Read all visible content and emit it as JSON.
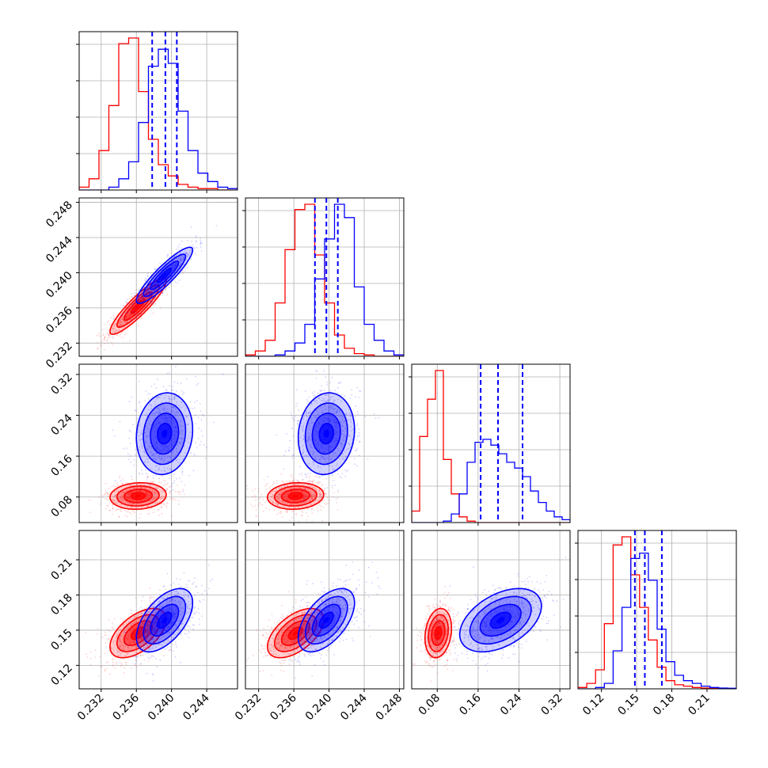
{
  "chart_data": {
    "type": "corner",
    "grid": true,
    "series_colors": {
      "run_a": "#ff0000",
      "run_b": "#0000ff"
    },
    "quantile_line_style": "dashed",
    "parameters": [
      {
        "range": [
          0.2295,
          0.2475
        ],
        "ticks": [
          0.232,
          0.236,
          0.24,
          0.244
        ],
        "tick_labels": [
          "0.232",
          "0.236",
          "0.240",
          "0.244"
        ],
        "quantiles": [
          0.2378,
          0.2393,
          0.2406
        ],
        "hist_run_a": [
          1,
          4,
          14,
          30,
          52,
          54,
          35,
          18,
          9,
          5,
          2,
          1,
          0.5,
          0.5,
          0,
          0
        ],
        "hist_run_b": [
          0,
          0,
          0,
          1,
          4,
          10,
          24,
          44,
          50,
          45,
          28,
          14,
          6,
          3,
          1,
          0.5
        ]
      },
      {
        "range": [
          0.2305,
          0.2485
        ],
        "ticks": [
          0.232,
          0.236,
          0.24,
          0.244,
          0.248
        ],
        "tick_labels": [
          "0.232",
          "0.236",
          "0.240",
          "0.244",
          "0.248"
        ],
        "quantiles": [
          0.2384,
          0.2397,
          0.241
        ],
        "hist_run_a": [
          0.5,
          2,
          6,
          20,
          40,
          55,
          57,
          38,
          20,
          8,
          3,
          1,
          0.5,
          0,
          0,
          0
        ],
        "hist_run_b": [
          0,
          0,
          0,
          0.5,
          2,
          5,
          12,
          29,
          44,
          57,
          52,
          26,
          12,
          6,
          2,
          0.5
        ]
      },
      {
        "range": [
          0.03,
          0.34
        ],
        "ticks": [
          0.08,
          0.16,
          0.24,
          0.32
        ],
        "tick_labels": [
          "0.08",
          "0.16",
          "0.24",
          "0.32"
        ],
        "quantiles": [
          0.165,
          0.199,
          0.247
        ],
        "hist_run_a": [
          4,
          30,
          43,
          53,
          22,
          10,
          2,
          0.5,
          0,
          0,
          0,
          0,
          0,
          0,
          0,
          0,
          0,
          0,
          0,
          0
        ],
        "hist_run_b": [
          0,
          0,
          0,
          0,
          0.5,
          3,
          10,
          21,
          28,
          29,
          27,
          24,
          21,
          19,
          16,
          11,
          7,
          4,
          2,
          1
        ]
      },
      {
        "range": [
          0.1,
          0.235
        ],
        "ticks": [
          0.12,
          0.15,
          0.18,
          0.21
        ],
        "tick_labels": [
          "0.12",
          "0.15",
          "0.18",
          "0.21"
        ],
        "quantiles": [
          0.1485,
          0.157,
          0.1715
        ],
        "hist_run_a": [
          0.5,
          2,
          7,
          24,
          53,
          56,
          42,
          30,
          18,
          8,
          3,
          1.5,
          1,
          0.5,
          0.3,
          0.2,
          0,
          0
        ],
        "hist_run_b": [
          0,
          0,
          0.5,
          2,
          14,
          30,
          48,
          50,
          40,
          22,
          10,
          5,
          3,
          2,
          1,
          0.5,
          0.3,
          0.2
        ]
      }
    ],
    "run_a_2d": {
      "means": [
        0.2362,
        0.2362,
        0.082,
        0.1475
      ],
      "stds": [
        0.0016,
        0.0016,
        0.013,
        0.0105
      ],
      "corr": {
        "1-0": 0.9,
        "2-0": 0.1,
        "2-1": 0.1,
        "3-0": 0.55,
        "3-1": 0.55,
        "3-2": 0.2
      }
    },
    "run_b_2d": {
      "means": [
        0.2392,
        0.2397,
        0.204,
        0.1585
      ],
      "stds": [
        0.0016,
        0.0016,
        0.04,
        0.0135
      ],
      "corr": {
        "1-0": 0.9,
        "2-0": 0.1,
        "2-1": 0.1,
        "3-0": 0.55,
        "3-1": 0.55,
        "3-2": 0.45
      }
    }
  }
}
